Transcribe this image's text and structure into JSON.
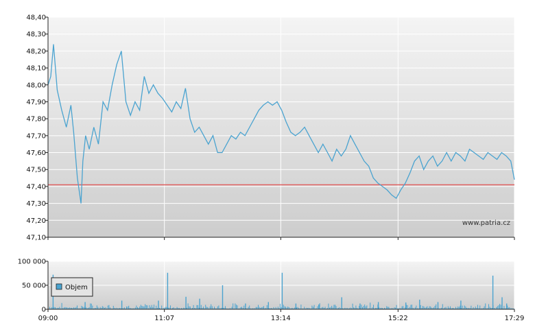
{
  "watermark": "www.patria.cz",
  "colors": {
    "price_line": "#4aa3d0",
    "reference_line": "#e06060",
    "volume_bar": "#4aa3d0",
    "plot_top": "#f4f4f4",
    "plot_bottom": "#cdcdcd",
    "grid": "#ffffff",
    "axis": "#222222"
  },
  "chart_data": [
    {
      "type": "line",
      "name": "price",
      "ylim": [
        47.1,
        48.4
      ],
      "y_ticks": [
        47.1,
        47.2,
        47.3,
        47.4,
        47.5,
        47.6,
        47.7,
        47.8,
        47.9,
        48.0,
        48.1,
        48.2,
        48.3,
        48.4
      ],
      "y_tick_labels": [
        "47,10",
        "47,20",
        "47,30",
        "47,40",
        "47,50",
        "47,60",
        "47,70",
        "47,80",
        "47,90",
        "48,00",
        "48,10",
        "48,20",
        "48,30",
        "48,40"
      ],
      "x_ticks": [
        "09:00",
        "11:07",
        "13:14",
        "15:22",
        "17:29"
      ],
      "x_range": [
        "09:00",
        "17:29"
      ],
      "reference_line": 47.41,
      "grid": true,
      "series": [
        {
          "x": [
            "09:00",
            "09:03",
            "09:06",
            "09:10",
            "09:15",
            "09:20",
            "09:25",
            "09:28",
            "09:32",
            "09:36",
            "09:38",
            "09:41",
            "09:45",
            "09:50",
            "09:55",
            "10:00",
            "10:05",
            "10:10",
            "10:15",
            "10:20",
            "10:25",
            "10:30",
            "10:35",
            "10:40",
            "10:45",
            "10:50",
            "10:55",
            "11:00",
            "11:05",
            "11:10",
            "11:15",
            "11:20",
            "11:25",
            "11:30",
            "11:35",
            "11:40",
            "11:45",
            "11:50",
            "11:55",
            "12:00",
            "12:05",
            "12:10",
            "12:15",
            "12:20",
            "12:25",
            "12:30",
            "12:35",
            "12:40",
            "12:45",
            "12:50",
            "12:55",
            "13:00",
            "13:05",
            "13:10",
            "13:15",
            "13:20",
            "13:25",
            "13:30",
            "13:35",
            "13:40",
            "13:45",
            "13:50",
            "13:55",
            "14:00",
            "14:05",
            "14:10",
            "14:15",
            "14:20",
            "14:25",
            "14:30",
            "14:35",
            "14:40",
            "14:45",
            "14:50",
            "14:55",
            "15:00",
            "15:05",
            "15:10",
            "15:15",
            "15:20",
            "15:25",
            "15:30",
            "15:35",
            "15:40",
            "15:45",
            "15:50",
            "15:55",
            "16:00",
            "16:05",
            "16:10",
            "16:15",
            "16:20",
            "16:25",
            "16:30",
            "16:35",
            "16:40",
            "16:45",
            "16:50",
            "16:55",
            "17:00",
            "17:05",
            "17:10",
            "17:15",
            "17:20",
            "17:25",
            "17:29"
          ],
          "y": [
            48.0,
            48.05,
            48.24,
            47.97,
            47.85,
            47.75,
            47.88,
            47.72,
            47.45,
            47.3,
            47.55,
            47.7,
            47.62,
            47.75,
            47.65,
            47.9,
            47.85,
            48.0,
            48.12,
            48.2,
            47.9,
            47.82,
            47.9,
            47.85,
            48.05,
            47.95,
            48.0,
            47.95,
            47.92,
            47.88,
            47.84,
            47.9,
            47.86,
            47.98,
            47.8,
            47.72,
            47.75,
            47.7,
            47.65,
            47.7,
            47.6,
            47.6,
            47.65,
            47.7,
            47.68,
            47.72,
            47.7,
            47.75,
            47.8,
            47.85,
            47.88,
            47.9,
            47.88,
            47.9,
            47.85,
            47.78,
            47.72,
            47.7,
            47.72,
            47.75,
            47.7,
            47.65,
            47.6,
            47.65,
            47.6,
            47.55,
            47.62,
            47.58,
            47.62,
            47.7,
            47.65,
            47.6,
            47.55,
            47.52,
            47.45,
            47.42,
            47.4,
            47.38,
            47.35,
            47.33,
            47.38,
            47.42,
            47.48,
            47.55,
            47.58,
            47.5,
            47.55,
            47.58,
            47.52,
            47.55,
            47.6,
            47.55,
            47.6,
            47.58,
            47.55,
            47.62,
            47.6,
            47.58,
            47.56,
            47.6,
            47.58,
            47.56,
            47.6,
            47.58,
            47.55,
            47.44
          ]
        }
      ]
    },
    {
      "type": "bar",
      "name": "volume",
      "legend": [
        "Objem"
      ],
      "ylim": [
        0,
        100000
      ],
      "y_ticks": [
        0,
        50000,
        100000
      ],
      "y_tick_labels": [
        "0",
        "50 000",
        "100 000"
      ],
      "x_ticks": [
        "09:00",
        "11:07",
        "13:14",
        "15:22",
        "17:29"
      ],
      "x_range": [
        "09:00",
        "17:29"
      ],
      "grid": true,
      "series": [
        {
          "x": [
            "09:05",
            "09:40",
            "10:20",
            "11:00",
            "11:10",
            "11:30",
            "11:45",
            "12:10",
            "12:35",
            "13:00",
            "13:15",
            "13:30",
            "13:55",
            "14:20",
            "14:40",
            "15:00",
            "15:30",
            "15:45",
            "16:05",
            "16:30",
            "17:05",
            "17:15",
            "17:20"
          ],
          "values": [
            72000,
            15000,
            18000,
            18000,
            76000,
            26000,
            22000,
            50000,
            12000,
            15000,
            76000,
            12000,
            10000,
            25000,
            12000,
            15000,
            14000,
            20000,
            15000,
            18000,
            70000,
            25000,
            12000
          ]
        }
      ]
    }
  ]
}
